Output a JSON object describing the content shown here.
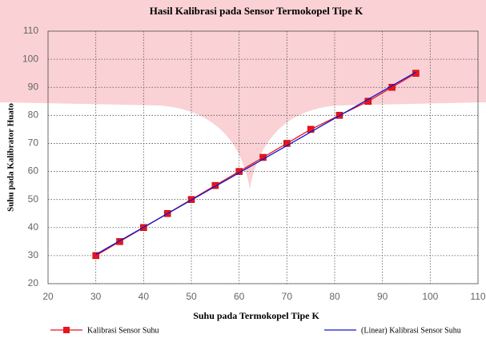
{
  "chart_data": {
    "type": "line",
    "title": "Hasil Kalibrasi pada Sensor Termokopel Tipe K",
    "x_label": "Suhu pada Termokopel Tipe K",
    "y_label": "Suhu pada Kalibrator Huato",
    "xlim": [
      20,
      110
    ],
    "xticks": [
      20,
      30,
      40,
      50,
      60,
      70,
      80,
      90,
      100,
      110
    ],
    "ylim": [
      20,
      110
    ],
    "yticks": [
      20,
      30,
      40,
      50,
      60,
      70,
      80,
      90,
      100,
      110
    ],
    "grid": true,
    "legend": "bottom",
    "series": [
      {
        "name": "Kalibrasi Sensor Suhu",
        "color": "#e8141e",
        "marker": "square",
        "x": [
          30,
          35,
          40,
          45,
          50,
          55,
          60,
          65,
          70,
          75,
          81,
          87,
          92,
          97
        ],
        "values": [
          30,
          35,
          40,
          45,
          50,
          55,
          60,
          65,
          70,
          75,
          80,
          85,
          90,
          95
        ]
      },
      {
        "name": "(Linear) Kalibrasi Sensor Suhu",
        "color": "#1414c8",
        "x": [
          30,
          97
        ],
        "values": [
          30.4,
          95.4
        ]
      }
    ]
  }
}
